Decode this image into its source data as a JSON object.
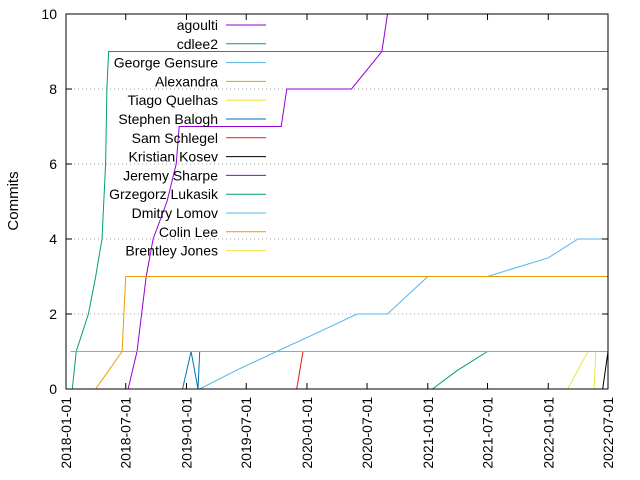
{
  "chart_data": {
    "type": "line",
    "title": "",
    "xlabel": "",
    "ylabel": "Commits",
    "ylim": [
      0,
      10
    ],
    "xlim": [
      "2018-01-01",
      "2022-07-01"
    ],
    "y_ticks": [
      0,
      2,
      4,
      6,
      8,
      10
    ],
    "x_ticks": [
      "2018-01-01",
      "2018-07-01",
      "2019-01-01",
      "2019-07-01",
      "2020-01-01",
      "2020-07-01",
      "2021-01-01",
      "2021-07-01",
      "2022-01-01",
      "2022-07-01"
    ],
    "grid": "horizontal dotted",
    "legend_position": "top-left inside",
    "series": [
      {
        "name": "agoulti",
        "color": "#9400d3",
        "points": [
          [
            "2018-07-08",
            0
          ],
          [
            "2018-08-04",
            1
          ],
          [
            "2018-09-01",
            3
          ],
          [
            "2018-09-22",
            4
          ],
          [
            "2018-11-03",
            5
          ],
          [
            "2018-12-01",
            6
          ],
          [
            "2018-12-10",
            7
          ],
          [
            "2019-02-01",
            7
          ],
          [
            "2019-06-01",
            7
          ],
          [
            "2019-10-15",
            7
          ],
          [
            "2019-11-01",
            8
          ],
          [
            "2020-05-15",
            8
          ],
          [
            "2020-08-15",
            9
          ],
          [
            "2020-09-01",
            10
          ]
        ]
      },
      {
        "name": "cdlee2",
        "color": "#009e73",
        "points": [
          [
            "2018-01-20",
            0
          ],
          [
            "2018-02-01",
            1
          ],
          [
            "2018-03-10",
            2
          ],
          [
            "2018-04-01",
            3
          ],
          [
            "2018-04-20",
            4
          ],
          [
            "2018-05-01",
            6
          ],
          [
            "2018-05-05",
            8
          ],
          [
            "2018-05-10",
            9
          ],
          [
            "2022-07-01",
            9
          ]
        ]
      },
      {
        "name": "George Gensure",
        "color": "#56b4e9",
        "points": [
          [
            "2019-02-10",
            0
          ],
          [
            "2019-06-01",
            0.5
          ],
          [
            "2019-10-01",
            1
          ],
          [
            "2020-02-01",
            1.5
          ],
          [
            "2020-06-01",
            2
          ],
          [
            "2020-09-01",
            2
          ],
          [
            "2021-01-01",
            3
          ],
          [
            "2021-07-01",
            3
          ],
          [
            "2022-01-01",
            3.5
          ],
          [
            "2022-04-01",
            4
          ],
          [
            "2022-07-01",
            4
          ]
        ]
      },
      {
        "name": "Alexandra",
        "color": "#e69f00",
        "points": [
          [
            "2018-04-01",
            0
          ],
          [
            "2018-06-20",
            1
          ],
          [
            "2018-07-01",
            3
          ],
          [
            "2022-07-01",
            3
          ]
        ]
      },
      {
        "name": "Tiago Quelhas",
        "color": "#f0e442",
        "points": [
          [
            "2022-03-01",
            0
          ],
          [
            "2022-05-01",
            1
          ],
          [
            "2022-07-01",
            1
          ]
        ]
      },
      {
        "name": "Stephen Balogh",
        "color": "#0072b2",
        "points": [
          [
            "2018-12-20",
            0
          ],
          [
            "2019-01-15",
            1
          ],
          [
            "2019-02-05",
            0
          ],
          [
            "2019-02-10",
            1
          ]
        ]
      },
      {
        "name": "Sam Schlegel",
        "color": "#e51e10",
        "points": [
          [
            "2019-12-01",
            0
          ],
          [
            "2019-12-20",
            1
          ]
        ]
      },
      {
        "name": "Kristian Kosev",
        "color": "#000000",
        "points": [
          [
            "2022-06-15",
            0
          ],
          [
            "2022-07-01",
            1
          ]
        ]
      },
      {
        "name": "Jeremy Sharpe",
        "color": "#9400d3",
        "points": [
          [
            "2021-02-01",
            0
          ],
          [
            "2021-02-01",
            0
          ]
        ]
      },
      {
        "name": "Grzegorz Lukasik",
        "color": "#009e73",
        "points": [
          [
            "2021-01-15",
            0
          ],
          [
            "2021-04-01",
            0.5
          ],
          [
            "2021-07-01",
            1
          ],
          [
            "2022-07-01",
            1
          ]
        ]
      },
      {
        "name": "Dmitry Lomov",
        "color": "#56b4e9",
        "points": [
          [
            "2018-01-15",
            1
          ],
          [
            "2022-07-01",
            1
          ]
        ]
      },
      {
        "name": "Colin Lee",
        "color": "#e69f00",
        "points": [
          [
            "2018-01-15",
            1
          ],
          [
            "2022-07-01",
            1
          ]
        ]
      },
      {
        "name": "Brentley Jones",
        "color": "#f0e442",
        "points": [
          [
            "2022-05-20",
            0
          ],
          [
            "2022-05-25",
            1
          ]
        ]
      }
    ]
  }
}
